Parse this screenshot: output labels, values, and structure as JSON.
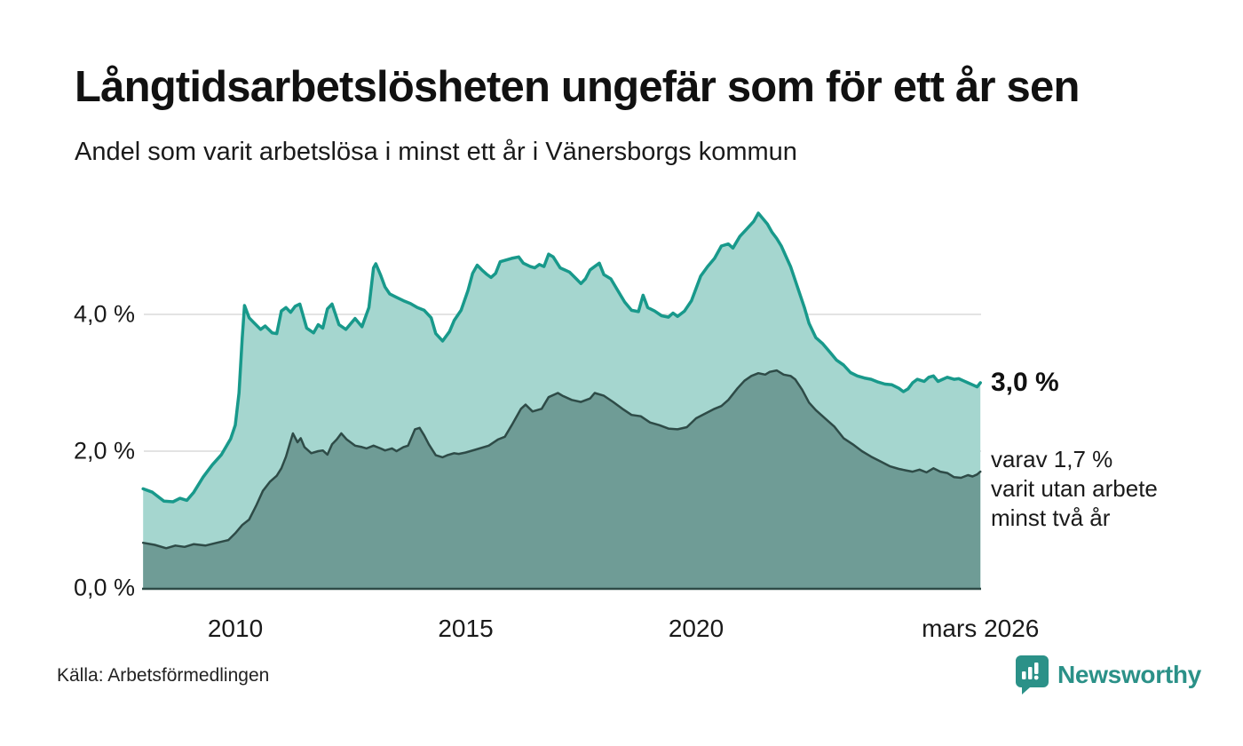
{
  "header": {
    "title": "Långtidsarbetslösheten ungefär som för ett år sen",
    "subtitle": "Andel som varit arbetslösa i minst ett år i Vänersborgs kommun"
  },
  "chart_data": {
    "type": "area",
    "title": "Långtidsarbetslösheten ungefär som för ett år sen",
    "subtitle": "Andel som varit arbetslösa i minst ett år i Vänersborgs kommun",
    "unit": "%",
    "x_axis": {
      "range": [
        2008.0,
        2026.25
      ],
      "ticks": [
        {
          "label": "2010",
          "year": 2010
        },
        {
          "label": "2015",
          "year": 2015
        },
        {
          "label": "2020",
          "year": 2020
        },
        {
          "label": "mars 2026",
          "year": 2026.17
        }
      ]
    },
    "y_axis": {
      "range": [
        0,
        5.7
      ],
      "gridlines": [
        2.0,
        4.0
      ],
      "ticks": [
        {
          "label": "4,0 %",
          "value": 4.0
        },
        {
          "label": "2,0 %",
          "value": 2.0
        },
        {
          "label": "0,0 %",
          "value": 0.0
        }
      ]
    },
    "series": [
      {
        "name": "Andel arbetslösa minst ett år",
        "fill": "#a5d6cf",
        "stroke": "#18998b",
        "stroke_width": 3.5,
        "points": [
          [
            2008.0,
            1.45
          ],
          [
            2008.2,
            1.4
          ],
          [
            2008.45,
            1.27
          ],
          [
            2008.65,
            1.26
          ],
          [
            2008.8,
            1.31
          ],
          [
            2008.95,
            1.28
          ],
          [
            2009.1,
            1.4
          ],
          [
            2009.3,
            1.62
          ],
          [
            2009.5,
            1.8
          ],
          [
            2009.7,
            1.95
          ],
          [
            2009.9,
            2.18
          ],
          [
            2010.0,
            2.38
          ],
          [
            2010.08,
            2.85
          ],
          [
            2010.15,
            3.65
          ],
          [
            2010.2,
            4.13
          ],
          [
            2010.3,
            3.95
          ],
          [
            2010.4,
            3.88
          ],
          [
            2010.55,
            3.78
          ],
          [
            2010.65,
            3.83
          ],
          [
            2010.8,
            3.73
          ],
          [
            2010.9,
            3.72
          ],
          [
            2011.0,
            4.05
          ],
          [
            2011.1,
            4.1
          ],
          [
            2011.2,
            4.03
          ],
          [
            2011.3,
            4.12
          ],
          [
            2011.4,
            4.15
          ],
          [
            2011.55,
            3.8
          ],
          [
            2011.7,
            3.73
          ],
          [
            2011.8,
            3.85
          ],
          [
            2011.9,
            3.8
          ],
          [
            2012.0,
            4.08
          ],
          [
            2012.1,
            4.15
          ],
          [
            2012.25,
            3.85
          ],
          [
            2012.4,
            3.78
          ],
          [
            2012.6,
            3.94
          ],
          [
            2012.75,
            3.82
          ],
          [
            2012.9,
            4.1
          ],
          [
            2013.0,
            4.68
          ],
          [
            2013.05,
            4.74
          ],
          [
            2013.15,
            4.58
          ],
          [
            2013.25,
            4.4
          ],
          [
            2013.35,
            4.3
          ],
          [
            2013.5,
            4.25
          ],
          [
            2013.65,
            4.2
          ],
          [
            2013.8,
            4.16
          ],
          [
            2013.95,
            4.1
          ],
          [
            2014.1,
            4.06
          ],
          [
            2014.25,
            3.95
          ],
          [
            2014.35,
            3.72
          ],
          [
            2014.5,
            3.61
          ],
          [
            2014.65,
            3.75
          ],
          [
            2014.75,
            3.91
          ],
          [
            2014.9,
            4.06
          ],
          [
            2015.05,
            4.35
          ],
          [
            2015.15,
            4.6
          ],
          [
            2015.25,
            4.72
          ],
          [
            2015.35,
            4.65
          ],
          [
            2015.45,
            4.59
          ],
          [
            2015.55,
            4.54
          ],
          [
            2015.65,
            4.6
          ],
          [
            2015.75,
            4.77
          ],
          [
            2015.9,
            4.8
          ],
          [
            2016.0,
            4.82
          ],
          [
            2016.15,
            4.84
          ],
          [
            2016.25,
            4.75
          ],
          [
            2016.4,
            4.7
          ],
          [
            2016.5,
            4.68
          ],
          [
            2016.6,
            4.73
          ],
          [
            2016.7,
            4.7
          ],
          [
            2016.8,
            4.88
          ],
          [
            2016.9,
            4.84
          ],
          [
            2017.05,
            4.68
          ],
          [
            2017.25,
            4.62
          ],
          [
            2017.4,
            4.52
          ],
          [
            2017.5,
            4.45
          ],
          [
            2017.6,
            4.52
          ],
          [
            2017.7,
            4.65
          ],
          [
            2017.8,
            4.7
          ],
          [
            2017.9,
            4.75
          ],
          [
            2018.0,
            4.58
          ],
          [
            2018.15,
            4.52
          ],
          [
            2018.3,
            4.35
          ],
          [
            2018.45,
            4.18
          ],
          [
            2018.6,
            4.06
          ],
          [
            2018.75,
            4.04
          ],
          [
            2018.85,
            4.28
          ],
          [
            2018.95,
            4.1
          ],
          [
            2019.1,
            4.05
          ],
          [
            2019.25,
            3.98
          ],
          [
            2019.4,
            3.96
          ],
          [
            2019.5,
            4.02
          ],
          [
            2019.6,
            3.97
          ],
          [
            2019.75,
            4.05
          ],
          [
            2019.9,
            4.2
          ],
          [
            2020.1,
            4.56
          ],
          [
            2020.25,
            4.7
          ],
          [
            2020.4,
            4.82
          ],
          [
            2020.55,
            5.0
          ],
          [
            2020.7,
            5.03
          ],
          [
            2020.8,
            4.97
          ],
          [
            2020.95,
            5.14
          ],
          [
            2021.1,
            5.25
          ],
          [
            2021.25,
            5.36
          ],
          [
            2021.35,
            5.48
          ],
          [
            2021.45,
            5.4
          ],
          [
            2021.55,
            5.32
          ],
          [
            2021.65,
            5.2
          ],
          [
            2021.75,
            5.11
          ],
          [
            2021.85,
            5.0
          ],
          [
            2021.95,
            4.85
          ],
          [
            2022.05,
            4.7
          ],
          [
            2022.2,
            4.4
          ],
          [
            2022.35,
            4.1
          ],
          [
            2022.45,
            3.87
          ],
          [
            2022.6,
            3.66
          ],
          [
            2022.75,
            3.57
          ],
          [
            2022.9,
            3.45
          ],
          [
            2023.05,
            3.33
          ],
          [
            2023.2,
            3.26
          ],
          [
            2023.35,
            3.15
          ],
          [
            2023.5,
            3.1
          ],
          [
            2023.65,
            3.07
          ],
          [
            2023.8,
            3.05
          ],
          [
            2023.95,
            3.01
          ],
          [
            2024.1,
            2.98
          ],
          [
            2024.25,
            2.97
          ],
          [
            2024.4,
            2.92
          ],
          [
            2024.5,
            2.87
          ],
          [
            2024.6,
            2.91
          ],
          [
            2024.7,
            3.0
          ],
          [
            2024.8,
            3.05
          ],
          [
            2024.95,
            3.02
          ],
          [
            2025.05,
            3.08
          ],
          [
            2025.15,
            3.1
          ],
          [
            2025.25,
            3.02
          ],
          [
            2025.35,
            3.05
          ],
          [
            2025.45,
            3.08
          ],
          [
            2025.6,
            3.05
          ],
          [
            2025.7,
            3.06
          ],
          [
            2025.8,
            3.03
          ],
          [
            2025.9,
            3.0
          ],
          [
            2026.0,
            2.97
          ],
          [
            2026.1,
            2.94
          ],
          [
            2026.17,
            3.0
          ]
        ]
      },
      {
        "name": "Andel arbetslösa minst två år",
        "fill": "#6f9c96",
        "stroke": "#2e4b47",
        "stroke_width": 2.5,
        "points": [
          [
            2008.0,
            0.66
          ],
          [
            2008.25,
            0.63
          ],
          [
            2008.5,
            0.58
          ],
          [
            2008.7,
            0.62
          ],
          [
            2008.9,
            0.6
          ],
          [
            2009.1,
            0.64
          ],
          [
            2009.35,
            0.62
          ],
          [
            2009.6,
            0.66
          ],
          [
            2009.85,
            0.7
          ],
          [
            2010.0,
            0.8
          ],
          [
            2010.15,
            0.92
          ],
          [
            2010.3,
            1.0
          ],
          [
            2010.45,
            1.2
          ],
          [
            2010.6,
            1.42
          ],
          [
            2010.75,
            1.55
          ],
          [
            2010.9,
            1.64
          ],
          [
            2011.0,
            1.75
          ],
          [
            2011.1,
            1.92
          ],
          [
            2011.18,
            2.1
          ],
          [
            2011.25,
            2.26
          ],
          [
            2011.35,
            2.13
          ],
          [
            2011.42,
            2.19
          ],
          [
            2011.5,
            2.06
          ],
          [
            2011.65,
            1.97
          ],
          [
            2011.8,
            2.0
          ],
          [
            2011.9,
            2.01
          ],
          [
            2012.0,
            1.95
          ],
          [
            2012.1,
            2.1
          ],
          [
            2012.2,
            2.17
          ],
          [
            2012.3,
            2.26
          ],
          [
            2012.42,
            2.17
          ],
          [
            2012.6,
            2.08
          ],
          [
            2012.75,
            2.06
          ],
          [
            2012.85,
            2.04
          ],
          [
            2013.0,
            2.08
          ],
          [
            2013.15,
            2.04
          ],
          [
            2013.25,
            2.01
          ],
          [
            2013.4,
            2.04
          ],
          [
            2013.5,
            2.0
          ],
          [
            2013.65,
            2.06
          ],
          [
            2013.75,
            2.08
          ],
          [
            2013.9,
            2.32
          ],
          [
            2014.0,
            2.34
          ],
          [
            2014.1,
            2.23
          ],
          [
            2014.2,
            2.1
          ],
          [
            2014.35,
            1.94
          ],
          [
            2014.5,
            1.91
          ],
          [
            2014.6,
            1.94
          ],
          [
            2014.75,
            1.97
          ],
          [
            2014.85,
            1.96
          ],
          [
            2015.0,
            1.98
          ],
          [
            2015.2,
            2.02
          ],
          [
            2015.5,
            2.08
          ],
          [
            2015.7,
            2.17
          ],
          [
            2015.85,
            2.21
          ],
          [
            2016.0,
            2.38
          ],
          [
            2016.2,
            2.62
          ],
          [
            2016.3,
            2.68
          ],
          [
            2016.45,
            2.58
          ],
          [
            2016.65,
            2.62
          ],
          [
            2016.8,
            2.79
          ],
          [
            2017.0,
            2.85
          ],
          [
            2017.1,
            2.81
          ],
          [
            2017.3,
            2.75
          ],
          [
            2017.5,
            2.72
          ],
          [
            2017.7,
            2.77
          ],
          [
            2017.8,
            2.85
          ],
          [
            2018.0,
            2.81
          ],
          [
            2018.2,
            2.72
          ],
          [
            2018.4,
            2.62
          ],
          [
            2018.6,
            2.53
          ],
          [
            2018.8,
            2.51
          ],
          [
            2019.0,
            2.42
          ],
          [
            2019.2,
            2.38
          ],
          [
            2019.4,
            2.33
          ],
          [
            2019.6,
            2.32
          ],
          [
            2019.8,
            2.35
          ],
          [
            2020.0,
            2.48
          ],
          [
            2020.2,
            2.55
          ],
          [
            2020.4,
            2.62
          ],
          [
            2020.55,
            2.66
          ],
          [
            2020.7,
            2.75
          ],
          [
            2020.9,
            2.92
          ],
          [
            2021.05,
            3.03
          ],
          [
            2021.2,
            3.1
          ],
          [
            2021.35,
            3.14
          ],
          [
            2021.5,
            3.12
          ],
          [
            2021.6,
            3.16
          ],
          [
            2021.75,
            3.18
          ],
          [
            2021.9,
            3.12
          ],
          [
            2022.05,
            3.1
          ],
          [
            2022.15,
            3.05
          ],
          [
            2022.3,
            2.9
          ],
          [
            2022.45,
            2.71
          ],
          [
            2022.6,
            2.6
          ],
          [
            2022.85,
            2.45
          ],
          [
            2023.0,
            2.36
          ],
          [
            2023.2,
            2.19
          ],
          [
            2023.4,
            2.1
          ],
          [
            2023.6,
            2.0
          ],
          [
            2023.8,
            1.92
          ],
          [
            2024.0,
            1.85
          ],
          [
            2024.2,
            1.78
          ],
          [
            2024.4,
            1.74
          ],
          [
            2024.55,
            1.72
          ],
          [
            2024.7,
            1.7
          ],
          [
            2024.85,
            1.73
          ],
          [
            2025.0,
            1.69
          ],
          [
            2025.15,
            1.75
          ],
          [
            2025.3,
            1.7
          ],
          [
            2025.45,
            1.68
          ],
          [
            2025.6,
            1.62
          ],
          [
            2025.75,
            1.61
          ],
          [
            2025.9,
            1.65
          ],
          [
            2026.0,
            1.63
          ],
          [
            2026.1,
            1.66
          ],
          [
            2026.17,
            1.7
          ]
        ]
      }
    ],
    "annotations": {
      "end_value_label": "3,0 %",
      "sub_label_lines": [
        "varav 1,7 %",
        "varit utan arbete",
        "minst två år"
      ]
    },
    "legend_position": "none",
    "grid": true
  },
  "footer": {
    "source": "Källa: Arbetsförmedlingen",
    "logo_text": "Newsworthy"
  },
  "colors": {
    "background": "#ffffff",
    "text": "#1a1a1a",
    "gridline": "#dadada",
    "baseline": "#2e4b47",
    "series1_fill": "#a5d6cf",
    "series1_stroke": "#18998b",
    "series2_fill": "#6f9c96",
    "series2_stroke": "#2e4b47",
    "logo_teal": "#2b9188"
  }
}
